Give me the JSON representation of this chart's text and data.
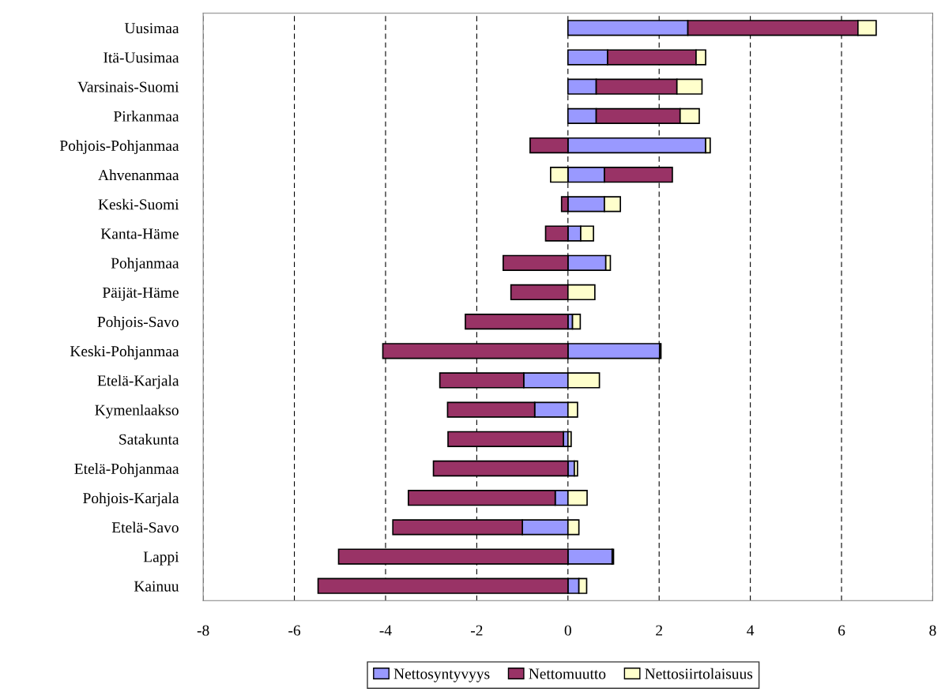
{
  "chart_data": {
    "type": "bar",
    "orientation": "horizontal",
    "stacked": true,
    "categories": [
      "Uusimaa",
      "Itä-Uusimaa",
      "Varsinais-Suomi",
      "Pirkanmaa",
      "Pohjois-Pohjanmaa",
      "Ahvenanmaa",
      "Keski-Suomi",
      "Kanta-Häme",
      "Pohjanmaa",
      "Päijät-Häme",
      "Pohjois-Savo",
      "Keski-Pohjanmaa",
      "Etelä-Karjala",
      "Kymenlaakso",
      "Satakunta",
      "Etelä-Pohjanmaa",
      "Pohjois-Karjala",
      "Etelä-Savo",
      "Lappi",
      "Kainuu"
    ],
    "series": [
      {
        "name": "Nettosyntyvyys",
        "color": "#9999ff",
        "values": [
          2.63,
          0.87,
          0.62,
          0.62,
          3.02,
          0.8,
          0.8,
          0.28,
          0.83,
          null,
          0.1,
          2.01,
          -0.97,
          -0.73,
          -0.1,
          0.14,
          -0.28,
          -1.0,
          0.97,
          0.24
        ]
      },
      {
        "name": "Nettomuutto",
        "color": "#993366",
        "values": [
          3.73,
          1.94,
          1.77,
          1.84,
          -0.83,
          1.49,
          -0.14,
          -0.49,
          -1.42,
          -1.25,
          -2.25,
          -4.06,
          -1.84,
          -1.91,
          -2.53,
          -2.95,
          -3.22,
          -2.84,
          -5.03,
          -5.48
        ]
      },
      {
        "name": "Nettosiirtolaisuus",
        "color": "#ffffcc",
        "values": [
          0.4,
          0.21,
          0.55,
          0.42,
          0.1,
          -0.38,
          0.35,
          0.28,
          0.1,
          0.59,
          0.17,
          0.03,
          0.69,
          0.21,
          0.07,
          0.07,
          0.42,
          0.24,
          0.03,
          0.17
        ]
      }
    ],
    "xlim": [
      -8,
      8
    ],
    "xticks": [
      -8,
      -6,
      -4,
      -2,
      0,
      2,
      4,
      6,
      8
    ],
    "grid": "x",
    "legend": "bottom"
  }
}
